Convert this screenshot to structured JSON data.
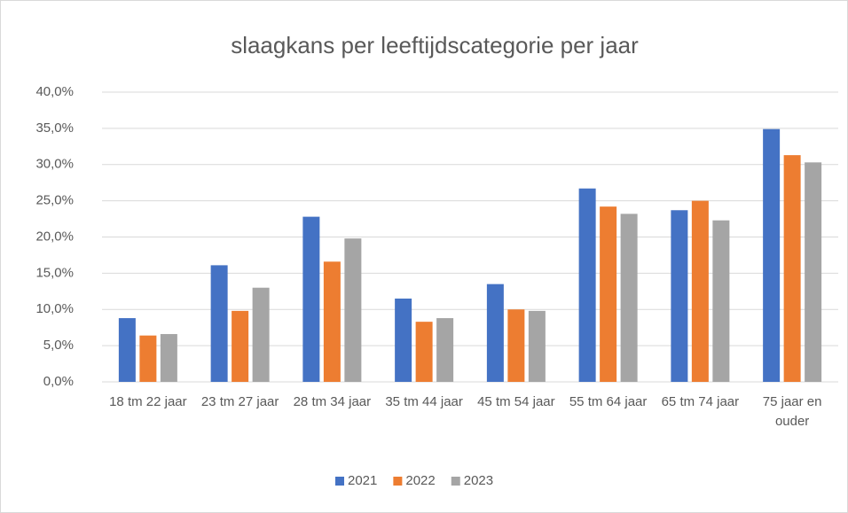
{
  "chart_data": {
    "type": "bar",
    "title": "slaagkans per leeftijdscategorie per jaar",
    "categories": [
      "18 tm 22 jaar",
      "23 tm 27 jaar",
      "28 tm 34 jaar",
      "35 tm 44 jaar",
      "45 tm 54 jaar",
      "55 tm 64 jaar",
      "65 tm 74 jaar",
      "75 jaar en ouder"
    ],
    "series": [
      {
        "name": "2021",
        "color": "#4472c4",
        "values": [
          8.8,
          16.1,
          22.8,
          11.5,
          13.5,
          26.7,
          23.7,
          34.9
        ]
      },
      {
        "name": "2022",
        "color": "#ed7d31",
        "values": [
          6.4,
          9.8,
          16.6,
          8.3,
          10.0,
          24.2,
          25.0,
          31.3
        ]
      },
      {
        "name": "2023",
        "color": "#a5a5a5",
        "values": [
          6.6,
          13.0,
          19.8,
          8.8,
          9.8,
          23.2,
          22.3,
          30.3
        ]
      }
    ],
    "ylim": [
      0,
      40
    ],
    "yticks": [
      {
        "value": 0,
        "label": "0,0%"
      },
      {
        "value": 5,
        "label": "5,0%"
      },
      {
        "value": 10,
        "label": "10,0%"
      },
      {
        "value": 15,
        "label": "15,0%"
      },
      {
        "value": 20,
        "label": "20,0%"
      },
      {
        "value": 25,
        "label": "25,0%"
      },
      {
        "value": 30,
        "label": "30,0%"
      },
      {
        "value": 35,
        "label": "35,0%"
      },
      {
        "value": 40,
        "label": "40,0%"
      }
    ],
    "grid": true,
    "legend": "bottom"
  }
}
